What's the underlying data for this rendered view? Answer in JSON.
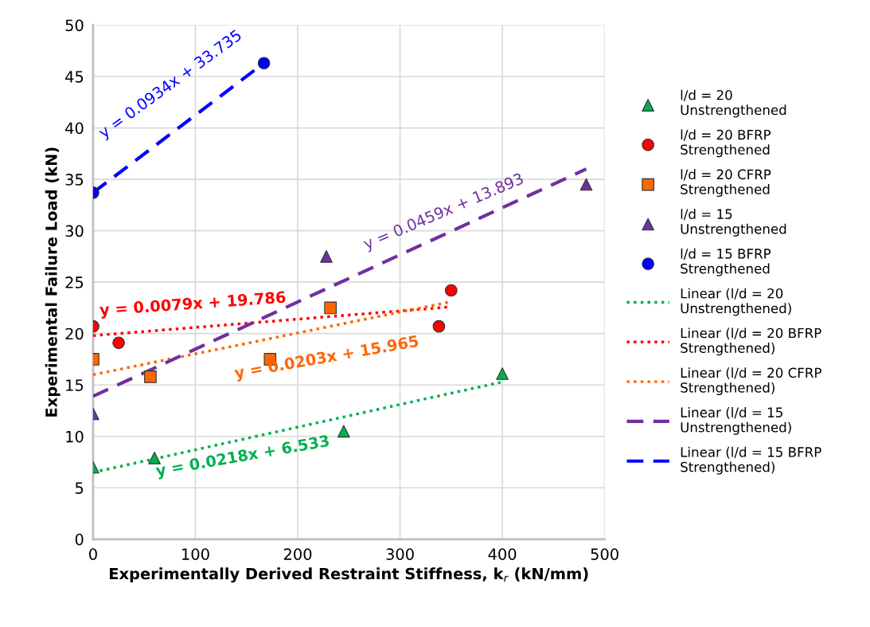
{
  "chart_data": {
    "type": "scatter",
    "xlabel": "Experimentally Derived Restraint Stiffness, k$_{r}$ (kN/mm)",
    "ylabel": "Experimental Failure Load (kN)",
    "xlim": [
      0,
      500
    ],
    "xticks": [
      0,
      100,
      200,
      300,
      400,
      {
        "value": 500,
        "label": "500"
      }
    ],
    "ylim": [
      0,
      50
    ],
    "yticks": [
      0,
      5,
      10,
      15,
      20,
      25,
      30,
      35,
      40,
      45,
      50
    ],
    "grid": true,
    "legend": "right",
    "series": [
      {
        "name": "l/d = 20 Unstrengthened",
        "marker": "triangle",
        "color": "#00b050",
        "x": [
          0,
          60,
          245,
          400
        ],
        "values": [
          7.0,
          7.9,
          10.5,
          16.1
        ]
      },
      {
        "name": "l/d = 20 BFRP Strengthened",
        "marker": "circle",
        "color": "#ff0000",
        "x": [
          0,
          25,
          338,
          350
        ],
        "values": [
          20.7,
          19.1,
          20.7,
          24.2
        ]
      },
      {
        "name": "l/d = 20 CFRP Strengthened",
        "marker": "square",
        "color": "#ff6600",
        "x": [
          0,
          56,
          173,
          232
        ],
        "values": [
          17.5,
          15.8,
          17.5,
          22.5
        ]
      },
      {
        "name": "l/d = 15 Unstrengthened",
        "marker": "triangle",
        "color": "#7030a0",
        "x": [
          0,
          228,
          482
        ],
        "values": [
          12.2,
          27.5,
          34.5
        ]
      },
      {
        "name": "l/d = 15 BFRP Strengthened",
        "marker": "circle",
        "color": "#0000ff",
        "x": [
          0,
          167
        ],
        "values": [
          33.7,
          46.3
        ]
      },
      {
        "name": "Linear (l/d = 20 Unstrengthened)",
        "type": "line",
        "line_style": "dotted",
        "color": "#00b050",
        "x": [
          0,
          400
        ],
        "values": [
          6.5,
          15.3
        ]
      },
      {
        "name": "Linear (l/d = 20 BFRP Strengthened)",
        "type": "line",
        "line_style": "dotted",
        "color": "#ff0000",
        "x": [
          0,
          350
        ],
        "values": [
          19.8,
          22.6
        ]
      },
      {
        "name": "Linear (l/d = 20 CFRP Strengthened)",
        "type": "line",
        "line_style": "dotted",
        "color": "#ff6600",
        "x": [
          0,
          350
        ],
        "values": [
          16.0,
          23.1
        ]
      },
      {
        "name": "Linear (l/d = 15 Unstrengthened)",
        "type": "line",
        "line_style": "dashed",
        "color": "#7030a0",
        "x": [
          0,
          482
        ],
        "values": [
          13.9,
          36.0
        ]
      },
      {
        "name": "Linear (l/d = 15 BFRP Strengthened)",
        "type": "line",
        "line_style": "dashed",
        "color": "#0000ff",
        "x": [
          0,
          167
        ],
        "values": [
          33.7,
          46.3
        ]
      }
    ],
    "annotations": [
      "y = 0.0218x + 6.533",
      "y = 0.0079x + 19.786",
      "y = 0.0203x + 15.965",
      "y = 0.0459x + 13.893",
      "y = 0.0934x + 33.735"
    ]
  }
}
